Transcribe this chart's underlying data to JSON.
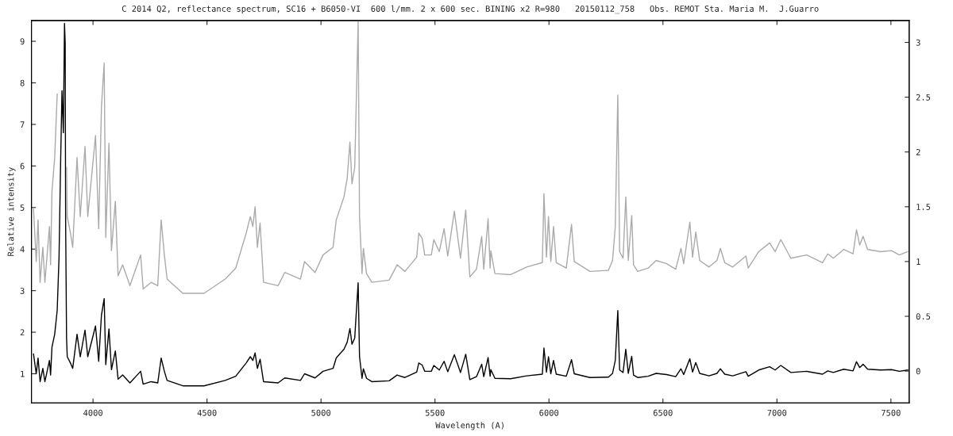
{
  "chart_data": {
    "type": "line",
    "title": "C 2014 Q2, reflectance spectrum, SC16 + B6050-VI  600 l/mm. 2 x 600 sec. BINING x2 R=980   20150112_758   Obs. REMOT Sta. Maria M.  J.Guarro",
    "xlabel": "Wavelength (A)",
    "ylabel": "Relative intensity",
    "x": [
      3739,
      3751,
      3759,
      3768,
      3780,
      3789,
      3809,
      3814,
      3820,
      3832,
      3843,
      3851,
      3858,
      3864,
      3870,
      3875,
      3878,
      3880,
      3884,
      3887,
      3901,
      3911,
      3930,
      3944,
      3965,
      3977,
      4011,
      4025,
      4037,
      4049,
      4056,
      4070,
      4081,
      4098,
      4110,
      4130,
      4162,
      4209,
      4220,
      4255,
      4284,
      4299,
      4313,
      4325,
      4394,
      4487,
      4580,
      4626,
      4672,
      4690,
      4701,
      4711,
      4721,
      4733,
      4748,
      4812,
      4841,
      4910,
      4928,
      4974,
      5009,
      5053,
      5067,
      5101,
      5115,
      5127,
      5136,
      5148,
      5163,
      5169,
      5180,
      5186,
      5200,
      5223,
      5299,
      5334,
      5368,
      5420,
      5429,
      5444,
      5455,
      5484,
      5495,
      5519,
      5540,
      5556,
      5585,
      5612,
      5635,
      5653,
      5682,
      5705,
      5714,
      5733,
      5742,
      5745,
      5763,
      5832,
      5902,
      5971,
      5978,
      5989,
      5998,
      6008,
      6020,
      6032,
      6076,
      6099,
      6111,
      6180,
      6261,
      6279,
      6291,
      6302,
      6310,
      6325,
      6337,
      6348,
      6363,
      6371,
      6389,
      6435,
      6470,
      6516,
      6556,
      6579,
      6591,
      6618,
      6630,
      6644,
      6661,
      6702,
      6737,
      6752,
      6771,
      6806,
      6864,
      6874,
      6920,
      6968,
      6992,
      7017,
      7061,
      7130,
      7200,
      7223,
      7247,
      7293,
      7334,
      7349,
      7363,
      7378,
      7398,
      7456,
      7502,
      7537,
      7574
    ],
    "series": [
      {
        "color": "#aaaaaa",
        "axis": "y2",
        "values": [
          1.48,
          1.0,
          1.38,
          0.81,
          1.13,
          0.81,
          1.32,
          0.97,
          1.64,
          1.95,
          2.53,
          null,
          null,
          null,
          null,
          null,
          null,
          null,
          1.86,
          1.41,
          1.26,
          1.13,
          1.95,
          1.41,
          2.05,
          1.41,
          2.15,
          1.3,
          2.41,
          2.81,
          1.22,
          2.08,
          1.1,
          1.55,
          0.87,
          0.97,
          0.78,
          1.06,
          0.75,
          0.81,
          0.78,
          1.38,
          1.06,
          0.84,
          0.71,
          0.71,
          0.84,
          0.94,
          1.26,
          1.41,
          1.32,
          1.5,
          1.13,
          1.35,
          0.81,
          0.78,
          0.9,
          0.84,
          1.0,
          0.9,
          1.06,
          1.13,
          1.38,
          1.59,
          1.76,
          2.09,
          1.71,
          1.86,
          3.19,
          1.42,
          0.89,
          1.12,
          0.89,
          0.81,
          0.83,
          0.97,
          0.91,
          1.04,
          1.26,
          1.21,
          1.06,
          1.06,
          1.2,
          1.09,
          1.3,
          1.05,
          1.46,
          1.03,
          1.47,
          0.86,
          0.93,
          1.23,
          0.93,
          1.39,
          0.94,
          1.1,
          0.89,
          0.88,
          0.95,
          0.99,
          1.62,
          1.04,
          1.41,
          1.0,
          1.32,
          0.99,
          0.94,
          1.34,
          1.0,
          0.91,
          0.92,
          1.01,
          1.32,
          2.52,
          1.09,
          1.03,
          1.59,
          1.01,
          1.42,
          0.97,
          0.91,
          0.94,
          1.01,
          0.98,
          0.93,
          1.12,
          0.98,
          1.36,
          1.04,
          1.27,
          1.01,
          0.95,
          1.01,
          1.12,
          0.99,
          0.95,
          1.05,
          0.94,
          1.09,
          1.17,
          1.09,
          1.2,
          1.03,
          1.06,
          0.99,
          1.07,
          1.03,
          1.11,
          1.07,
          1.29,
          1.15,
          1.23,
          1.11,
          1.09,
          1.1,
          1.06,
          1.09
        ]
      },
      {
        "color": "#000000",
        "axis": "y",
        "values": [
          1.48,
          1.0,
          1.38,
          0.81,
          1.13,
          0.81,
          1.32,
          0.97,
          1.64,
          1.95,
          2.53,
          3.8,
          6.09,
          7.81,
          6.8,
          9.43,
          8.95,
          4.63,
          1.86,
          1.41,
          1.26,
          1.13,
          1.95,
          1.41,
          2.05,
          1.41,
          2.15,
          1.3,
          2.41,
          2.81,
          1.22,
          2.08,
          1.1,
          1.55,
          0.87,
          0.97,
          0.78,
          1.06,
          0.75,
          0.81,
          0.78,
          1.38,
          1.06,
          0.84,
          0.71,
          0.71,
          0.84,
          0.94,
          1.26,
          1.41,
          1.32,
          1.5,
          1.13,
          1.35,
          0.81,
          0.78,
          0.9,
          0.84,
          1.0,
          0.9,
          1.06,
          1.13,
          1.38,
          1.59,
          1.76,
          2.09,
          1.71,
          1.86,
          3.19,
          1.42,
          0.89,
          1.12,
          0.89,
          0.81,
          0.83,
          0.97,
          0.91,
          1.04,
          1.26,
          1.21,
          1.06,
          1.06,
          1.2,
          1.09,
          1.3,
          1.05,
          1.46,
          1.03,
          1.47,
          0.86,
          0.93,
          1.23,
          0.93,
          1.39,
          0.94,
          1.1,
          0.89,
          0.88,
          0.95,
          0.99,
          1.62,
          1.04,
          1.41,
          1.0,
          1.32,
          0.99,
          0.94,
          1.34,
          1.0,
          0.91,
          0.92,
          1.01,
          1.32,
          2.52,
          1.09,
          1.03,
          1.59,
          1.01,
          1.42,
          0.97,
          0.91,
          0.94,
          1.01,
          0.98,
          0.93,
          1.12,
          0.98,
          1.36,
          1.04,
          1.27,
          1.01,
          0.95,
          1.01,
          1.12,
          0.99,
          0.95,
          1.05,
          0.94,
          1.09,
          1.17,
          1.09,
          1.2,
          1.03,
          1.06,
          0.99,
          1.07,
          1.03,
          1.11,
          1.07,
          1.29,
          1.15,
          1.23,
          1.11,
          1.09,
          1.1,
          1.06,
          1.09
        ]
      }
    ],
    "xlim": [
      3730,
      7580
    ],
    "xticks": [
      4000,
      4500,
      5000,
      5500,
      6000,
      6500,
      7000,
      7500
    ],
    "ylim": [
      0.3,
      9.5
    ],
    "yticks": [
      1,
      2,
      3,
      4,
      5,
      6,
      7,
      8,
      9
    ],
    "y2lim": [
      -0.29,
      3.2
    ],
    "y2ticks": [
      0,
      0.5,
      1,
      1.5,
      2,
      2.5,
      3
    ],
    "grid": false,
    "legend": false,
    "line_style": "solid",
    "marker": "none"
  }
}
